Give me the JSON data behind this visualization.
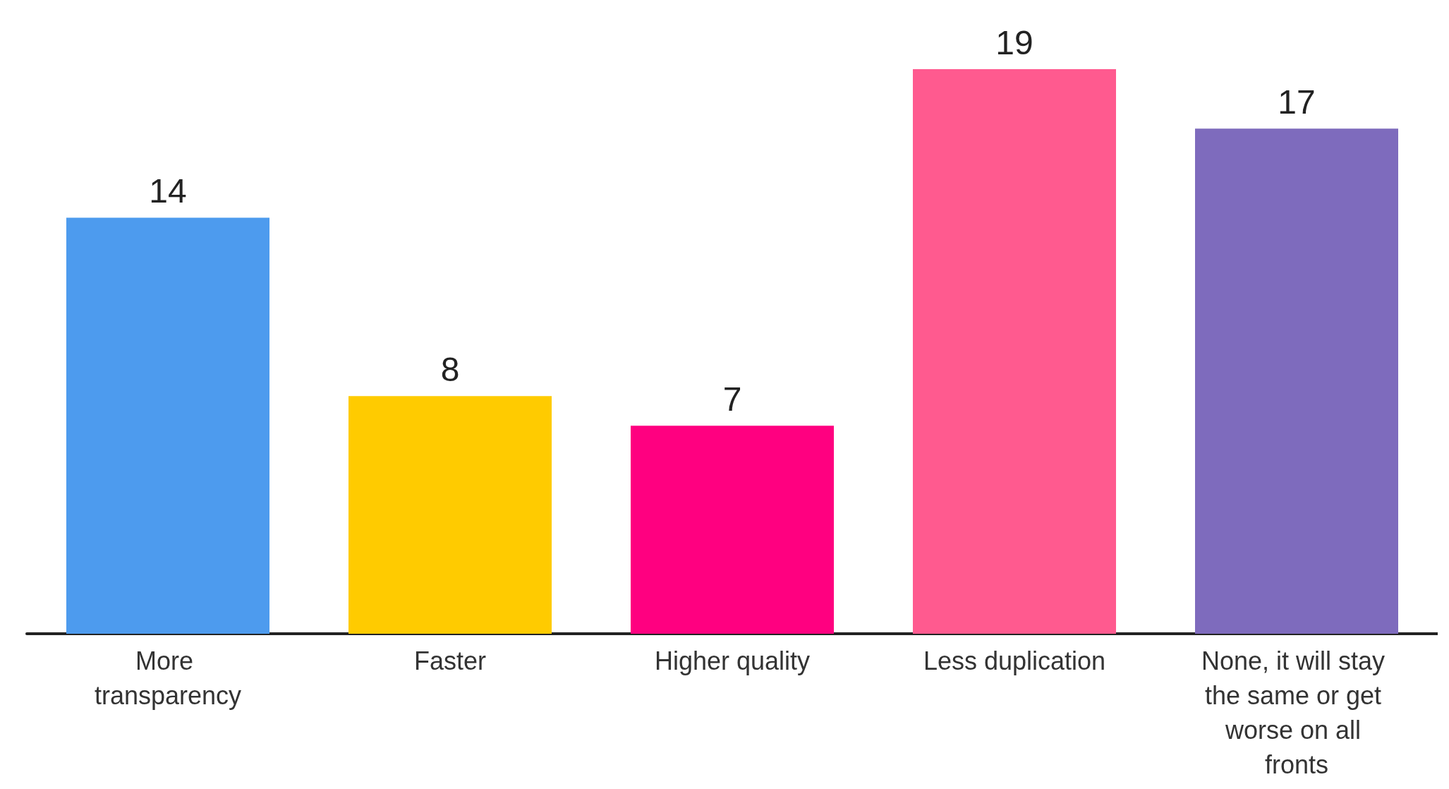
{
  "chart_data": {
    "type": "bar",
    "categories": [
      "More transparency",
      "Faster",
      "Higher quality",
      "Less duplication",
      "None, it will stay the same or get worse on all fronts"
    ],
    "values": [
      14,
      8,
      7,
      19,
      17
    ],
    "colors": [
      "#4d9bee",
      "#ffcb00",
      "#ff0080",
      "#ff5a8f",
      "#7e6bbd"
    ],
    "data_labels": true,
    "grid": false
  }
}
